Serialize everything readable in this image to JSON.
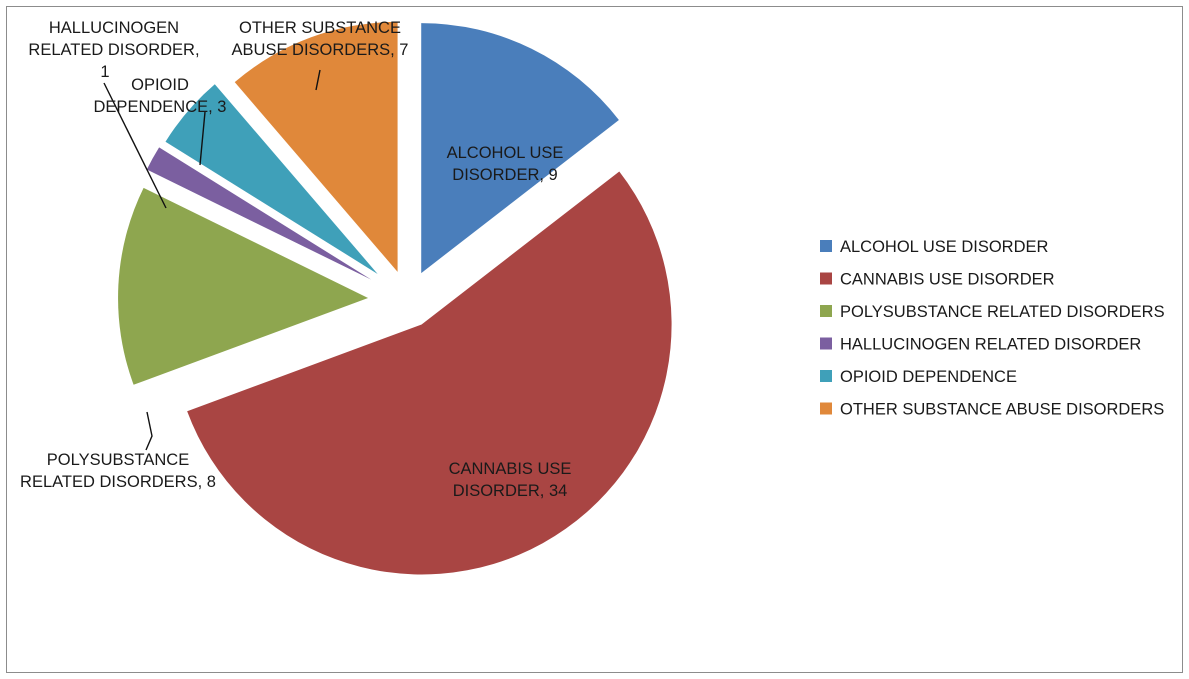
{
  "chart_data": {
    "type": "pie",
    "exploded": true,
    "slices": [
      {
        "name": "ALCOHOL USE DISORDER",
        "value": 9,
        "color": "#4a7ebb",
        "label_lines": [
          "ALCOHOL USE",
          "DISORDER, 9"
        ]
      },
      {
        "name": "CANNABIS USE DISORDER",
        "value": 34,
        "color": "#a94543",
        "label_lines": [
          "CANNABIS USE",
          "DISORDER, 34"
        ]
      },
      {
        "name": "POLYSUBSTANCE RELATED DISORDERS",
        "value": 8,
        "color": "#8ea64f",
        "label_lines": [
          "POLYSUBSTANCE",
          "RELATED DISORDERS, 8"
        ]
      },
      {
        "name": "HALLUCINOGEN RELATED DISORDER",
        "value": 1,
        "color": "#7b5fa0",
        "label_lines": [
          "HALLUCINOGEN",
          "RELATED DISORDER,",
          "1"
        ]
      },
      {
        "name": "OPIOID DEPENDENCE",
        "value": 3,
        "color": "#3fa0b9",
        "label_lines": [
          "OPIOID",
          "DEPENDENCE, 3"
        ]
      },
      {
        "name": "OTHER SUBSTANCE ABUSE DISORDERS",
        "value": 7,
        "color": "#e0883a",
        "label_lines": [
          "OTHER SUBSTANCE",
          "ABUSE DISORDERS, 7"
        ]
      }
    ],
    "legend": {
      "position": "right"
    }
  }
}
